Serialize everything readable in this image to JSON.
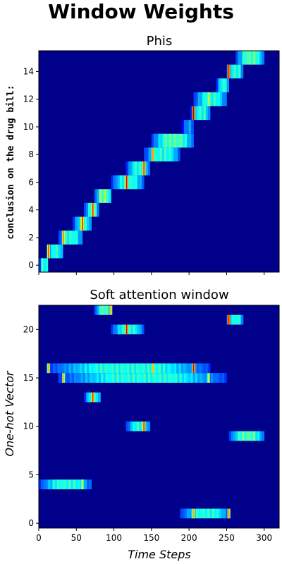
{
  "figure": {
    "suptitle": "Window Weights",
    "background_color": "#00008b",
    "colormap": "jet"
  },
  "chart_data": [
    {
      "type": "heatmap",
      "title": "Phis",
      "ylabel": "conclusion on the drug bill:",
      "xlabel": "",
      "xlim": [
        0,
        320
      ],
      "ylim": [
        -0.5,
        15.5
      ],
      "yticks": [
        0,
        2,
        4,
        6,
        8,
        10,
        12,
        14
      ],
      "xticks": [
        0,
        50,
        100,
        150,
        200,
        250,
        300
      ],
      "show_xtick_labels": false,
      "rows": [
        {
          "y": 0,
          "x_start": 0,
          "x_end": 12,
          "intensity": 0.45,
          "peaks": [
            {
              "x": 5,
              "value": 0.5
            }
          ]
        },
        {
          "y": 1,
          "x_start": 10,
          "x_end": 32,
          "intensity": 0.45,
          "peaks": [
            {
              "x": 13,
              "value": 0.8
            }
          ]
        },
        {
          "y": 2,
          "x_start": 26,
          "x_end": 58,
          "intensity": 0.45,
          "peaks": [
            {
              "x": 33,
              "value": 0.75
            }
          ]
        },
        {
          "y": 3,
          "x_start": 45,
          "x_end": 70,
          "intensity": 0.45,
          "peaks": [
            {
              "x": 58,
              "value": 0.85
            }
          ]
        },
        {
          "y": 4,
          "x_start": 60,
          "x_end": 80,
          "intensity": 0.45,
          "peaks": [
            {
              "x": 72,
              "value": 0.85
            }
          ]
        },
        {
          "y": 5,
          "x_start": 74,
          "x_end": 96,
          "intensity": 0.55,
          "peaks": []
        },
        {
          "y": 6,
          "x_start": 96,
          "x_end": 140,
          "intensity": 0.45,
          "peaks": [
            {
              "x": 117,
              "value": 0.9
            }
          ]
        },
        {
          "y": 7,
          "x_start": 116,
          "x_end": 148,
          "intensity": 0.45,
          "peaks": [
            {
              "x": 140,
              "value": 0.85
            }
          ]
        },
        {
          "y": 8,
          "x_start": 140,
          "x_end": 188,
          "intensity": 0.45,
          "peaks": [
            {
              "x": 152,
              "value": 0.75
            }
          ]
        },
        {
          "y": 9,
          "x_start": 150,
          "x_end": 206,
          "intensity": 0.5,
          "peaks": []
        },
        {
          "y": 10,
          "x_start": 190,
          "x_end": 206,
          "intensity": 0.3,
          "peaks": []
        },
        {
          "y": 11,
          "x_start": 202,
          "x_end": 228,
          "intensity": 0.45,
          "peaks": [
            {
              "x": 206,
              "value": 0.95
            }
          ]
        },
        {
          "y": 12,
          "x_start": 206,
          "x_end": 250,
          "intensity": 0.45,
          "peaks": [
            {
              "x": 226,
              "value": 0.6
            }
          ]
        },
        {
          "y": 13,
          "x_start": 236,
          "x_end": 253,
          "intensity": 0.45,
          "peaks": []
        },
        {
          "y": 14,
          "x_start": 250,
          "x_end": 272,
          "intensity": 0.45,
          "peaks": [
            {
              "x": 253,
              "value": 0.9
            }
          ]
        },
        {
          "y": 15,
          "x_start": 262,
          "x_end": 300,
          "intensity": 0.5,
          "peaks": []
        }
      ]
    },
    {
      "type": "heatmap",
      "title": "Soft attention window",
      "ylabel": "One-hot Vector",
      "xlabel": "Time Steps",
      "xlim": [
        0,
        320
      ],
      "ylim": [
        -0.5,
        22.5
      ],
      "yticks": [
        0,
        5,
        10,
        15,
        20
      ],
      "xticks": [
        0,
        50,
        100,
        150,
        200,
        250,
        300
      ],
      "show_xtick_labels": true,
      "rows": [
        {
          "y": 0,
          "x_start": 0,
          "x_end": 0,
          "intensity": 0,
          "peaks": []
        },
        {
          "y": 1,
          "x_start": 188,
          "x_end": 255,
          "intensity": 0.45,
          "peaks": [
            {
              "x": 206,
              "value": 0.7
            },
            {
              "x": 253,
              "value": 0.75
            }
          ]
        },
        {
          "y": 4,
          "x_start": 0,
          "x_end": 70,
          "intensity": 0.45,
          "peaks": [
            {
              "x": 58,
              "value": 0.6
            }
          ]
        },
        {
          "y": 9,
          "x_start": 253,
          "x_end": 300,
          "intensity": 0.5,
          "peaks": []
        },
        {
          "y": 10,
          "x_start": 116,
          "x_end": 148,
          "intensity": 0.45,
          "peaks": [
            {
              "x": 140,
              "value": 0.85
            }
          ]
        },
        {
          "y": 13,
          "x_start": 60,
          "x_end": 82,
          "intensity": 0.45,
          "peaks": [
            {
              "x": 72,
              "value": 0.85
            }
          ]
        },
        {
          "y": 15,
          "x_start": 26,
          "x_end": 250,
          "intensity": 0.45,
          "peaks": [
            {
              "x": 33,
              "value": 0.7
            },
            {
              "x": 226,
              "value": 0.6
            }
          ]
        },
        {
          "y": 16,
          "x_start": 10,
          "x_end": 228,
          "intensity": 0.45,
          "peaks": [
            {
              "x": 13,
              "value": 0.7
            },
            {
              "x": 152,
              "value": 0.7
            },
            {
              "x": 206,
              "value": 0.9
            }
          ]
        },
        {
          "y": 20,
          "x_start": 96,
          "x_end": 140,
          "intensity": 0.45,
          "peaks": [
            {
              "x": 117,
              "value": 0.9
            }
          ]
        },
        {
          "y": 21,
          "x_start": 250,
          "x_end": 272,
          "intensity": 0.45,
          "peaks": [
            {
              "x": 253,
              "value": 0.9
            }
          ]
        },
        {
          "y": 22,
          "x_start": 74,
          "x_end": 96,
          "intensity": 0.5,
          "peaks": [
            {
              "x": 96,
              "value": 0.7
            }
          ]
        }
      ]
    }
  ]
}
